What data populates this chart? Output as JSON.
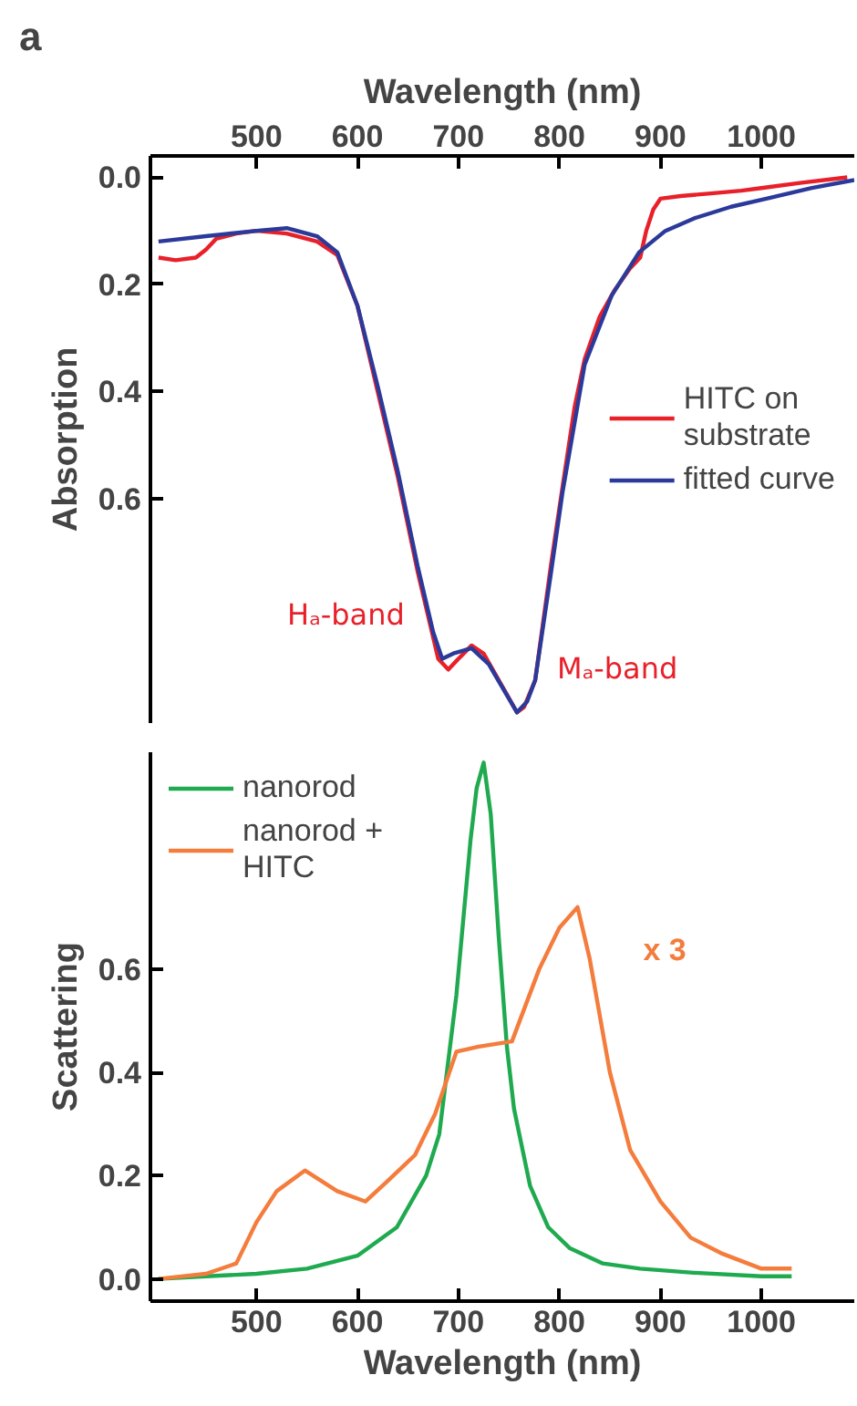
{
  "chart_data": [
    {
      "type": "line",
      "xlabel": "Wavelength (nm)",
      "ylabel": "Absorption",
      "xlim": [
        395,
        1092
      ],
      "xticks": [
        500,
        600,
        700,
        800,
        900,
        1000
      ],
      "ylim": [
        1.02,
        -0.04
      ],
      "yticks": [
        {
          "value": 0,
          "label": "0.0"
        },
        0.2,
        0.4,
        0.6
      ],
      "legend": "right",
      "line_style": "solid",
      "marker": "none",
      "series": [
        {
          "name": "HITC on substrate",
          "color": "#e8202a",
          "x": [
            403,
            420,
            440,
            450,
            460,
            480,
            500,
            530,
            560,
            580,
            600,
            620,
            640,
            660,
            680,
            690,
            700,
            713,
            725,
            740,
            758,
            765,
            776,
            792,
            803,
            815,
            825,
            840,
            855,
            870,
            880,
            886,
            893,
            900,
            920,
            950,
            980,
            1000,
            1040,
            1085
          ],
          "values": [
            0.15,
            0.155,
            0.15,
            0.135,
            0.115,
            0.105,
            0.1,
            0.105,
            0.12,
            0.145,
            0.24,
            0.4,
            0.56,
            0.74,
            0.9,
            0.92,
            0.9,
            0.875,
            0.89,
            0.94,
            1.0,
            0.99,
            0.94,
            0.72,
            0.58,
            0.43,
            0.34,
            0.26,
            0.21,
            0.17,
            0.15,
            0.1,
            0.06,
            0.04,
            0.035,
            0.03,
            0.025,
            0.02,
            0.01,
            0.0
          ]
        },
        {
          "name": "fitted curve",
          "color": "#2b3a9a",
          "x": [
            403,
            450,
            500,
            530,
            560,
            580,
            600,
            620,
            640,
            660,
            675,
            684,
            695,
            713,
            730,
            758,
            768,
            776,
            792,
            803,
            825,
            852,
            879,
            905,
            933,
            970,
            1005,
            1050,
            1092
          ],
          "values": [
            0.12,
            0.11,
            0.1,
            0.095,
            0.11,
            0.14,
            0.24,
            0.39,
            0.55,
            0.73,
            0.85,
            0.9,
            0.89,
            0.88,
            0.91,
            1.0,
            0.98,
            0.94,
            0.735,
            0.59,
            0.35,
            0.22,
            0.14,
            0.1,
            0.077,
            0.055,
            0.04,
            0.02,
            0.005
          ]
        }
      ],
      "annotations": [
        "a",
        {
          "text": "Hₐ-band",
          "x": 690,
          "y": 0.92
        },
        {
          "text": "Mₐ-band",
          "x": 758,
          "y": 1.0
        }
      ]
    },
    {
      "type": "line",
      "xlabel": "Wavelength (nm)",
      "ylabel": "Scattering",
      "xlim": [
        395,
        1092
      ],
      "xticks": [
        500,
        600,
        700,
        800,
        900,
        1000
      ],
      "ylim": [
        -0.043,
        1.02
      ],
      "yticks": [
        {
          "value": 0,
          "label": "0.0"
        },
        0.2,
        0.4,
        0.6
      ],
      "legend": "top left",
      "line_style": "solid",
      "marker": "none",
      "series": [
        {
          "name": "nanorod",
          "color": "#1faa50",
          "x": [
            403,
            450,
            500,
            550,
            600,
            639,
            668,
            681,
            698,
            712,
            718,
            725,
            732,
            740,
            748,
            755,
            771,
            789,
            810,
            843,
            880,
            933,
            1000,
            1030
          ],
          "values": [
            0.0,
            0.005,
            0.01,
            0.02,
            0.045,
            0.1,
            0.2,
            0.28,
            0.55,
            0.85,
            0.95,
            1.0,
            0.9,
            0.66,
            0.45,
            0.33,
            0.18,
            0.1,
            0.06,
            0.03,
            0.02,
            0.012,
            0.005,
            0.005
          ]
        },
        {
          "name": "nanorod + HITC",
          "color": "#f47c3c",
          "x": [
            403,
            450,
            480,
            500,
            520,
            548,
            580,
            608,
            630,
            657,
            677,
            698,
            720,
            753,
            780,
            800,
            818,
            830,
            850,
            870,
            900,
            930,
            960,
            1000,
            1030
          ],
          "values": [
            0.0,
            0.01,
            0.03,
            0.11,
            0.17,
            0.21,
            0.17,
            0.15,
            0.19,
            0.24,
            0.32,
            0.44,
            0.45,
            0.46,
            0.6,
            0.68,
            0.72,
            0.62,
            0.4,
            0.25,
            0.15,
            0.08,
            0.05,
            0.02,
            0.02
          ]
        }
      ],
      "annotations": [
        "x 3"
      ]
    }
  ]
}
